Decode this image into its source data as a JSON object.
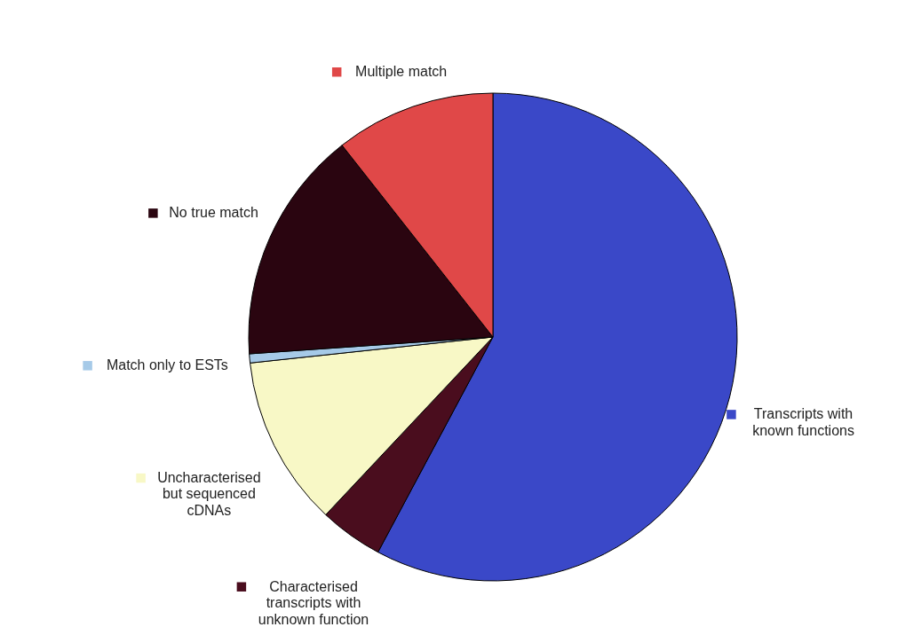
{
  "chart_data": {
    "type": "pie",
    "categories": [
      "Transcripts with known functions",
      "Characterised transcripts with unknown function",
      "Uncharacterised but sequenced cDNAs",
      "Match only to ESTs",
      "No true match",
      "Multiple match"
    ],
    "values": [
      57.8,
      4.2,
      11.3,
      0.6,
      15.5,
      10.6
    ],
    "colors": [
      "#3a48c8",
      "#4a0d1e",
      "#f8f8c6",
      "#a6cae8",
      "#2a0510",
      "#e04848"
    ],
    "legend": "left"
  }
}
